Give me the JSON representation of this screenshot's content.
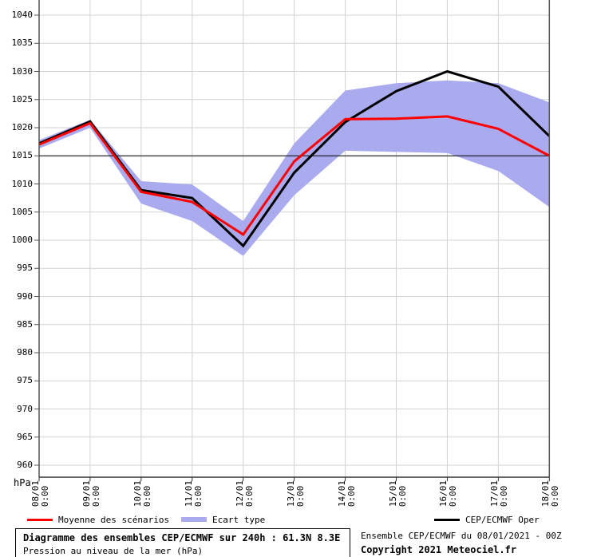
{
  "chart_data": {
    "type": "line",
    "title": "Diagramme des ensembles CEP/ECMWF sur 240h : 61.3N 8.3E",
    "subtitle": "Pression au niveau de la mer (hPa)",
    "ylabel": "hPa",
    "ylim": [
      956,
      1042
    ],
    "grid": true,
    "legend_position": "bottom",
    "y_ticks": [
      1040,
      1035,
      1030,
      1025,
      1020,
      1015,
      1010,
      1005,
      1000,
      995,
      990,
      985,
      980,
      975,
      970,
      965,
      960
    ],
    "x_days": [
      8,
      9,
      10,
      11,
      12,
      13,
      14,
      15,
      16,
      17,
      18
    ],
    "x_tick_labels": [
      {
        "date": "08/01",
        "time": "0:00"
      },
      {
        "date": "09/01",
        "time": "0:00"
      },
      {
        "date": "10/01",
        "time": "0:00"
      },
      {
        "date": "11/01",
        "time": "0:00"
      },
      {
        "date": "12/01",
        "time": "0:00"
      },
      {
        "date": "13/01",
        "time": "0:00"
      },
      {
        "date": "14/01",
        "time": "0:00"
      },
      {
        "date": "15/01",
        "time": "0:00"
      },
      {
        "date": "16/01",
        "time": "0:00"
      },
      {
        "date": "17/01",
        "time": "0:00"
      },
      {
        "date": "18/01",
        "time": "0:00"
      }
    ],
    "reference_line_hpa": 1015,
    "series": [
      {
        "name": "Ecart type",
        "type": "band",
        "color": "#aaaaee",
        "upper": [
          1017.8,
          1021.4,
          1010.5,
          1009.9,
          1003.4,
          1017.2,
          1026.6,
          1027.9,
          1028.4,
          1027.9,
          1024.5
        ],
        "lower": [
          1016.3,
          1020.0,
          1006.5,
          1003.4,
          997.2,
          1008.0,
          1015.9,
          1015.7,
          1015.5,
          1012.3,
          1005.9
        ]
      },
      {
        "name": "CEP/ECMWF Oper",
        "type": "line",
        "color": "#000000",
        "values": [
          1017.2,
          1021.1,
          1008.9,
          1007.5,
          999.0,
          1012.0,
          1021.0,
          1026.5,
          1030.0,
          1027.3,
          1018.5
        ]
      },
      {
        "name": "Moyenne des scénarios",
        "type": "line",
        "color": "#ff0000",
        "values": [
          1017.0,
          1020.8,
          1008.6,
          1006.8,
          1001.0,
          1014.0,
          1021.5,
          1021.6,
          1022.0,
          1019.8,
          1015.0
        ]
      }
    ]
  },
  "legend": {
    "items": [
      {
        "label": "Moyenne des scénarios",
        "color": "#ff0000",
        "style": "line"
      },
      {
        "label": "Ecart type",
        "color": "#aaaaee",
        "style": "band"
      },
      {
        "label": "CEP/ECMWF Oper",
        "color": "#000000",
        "style": "line"
      }
    ]
  },
  "footer": {
    "title": "Diagramme des ensembles CEP/ECMWF sur 240h : 61.3N 8.3E",
    "subtitle": "Pression au niveau de la mer (hPa)",
    "run_info": "Ensemble CEP/ECMWF du 08/01/2021 - 00Z",
    "copyright": "Copyright 2021 Meteociel.fr"
  },
  "colors": {
    "band": "#aaaaee",
    "mean": "#ff0000",
    "oper": "#000000",
    "grid": "#d2d2d2",
    "axis": "#555555",
    "reference": "#000000"
  }
}
